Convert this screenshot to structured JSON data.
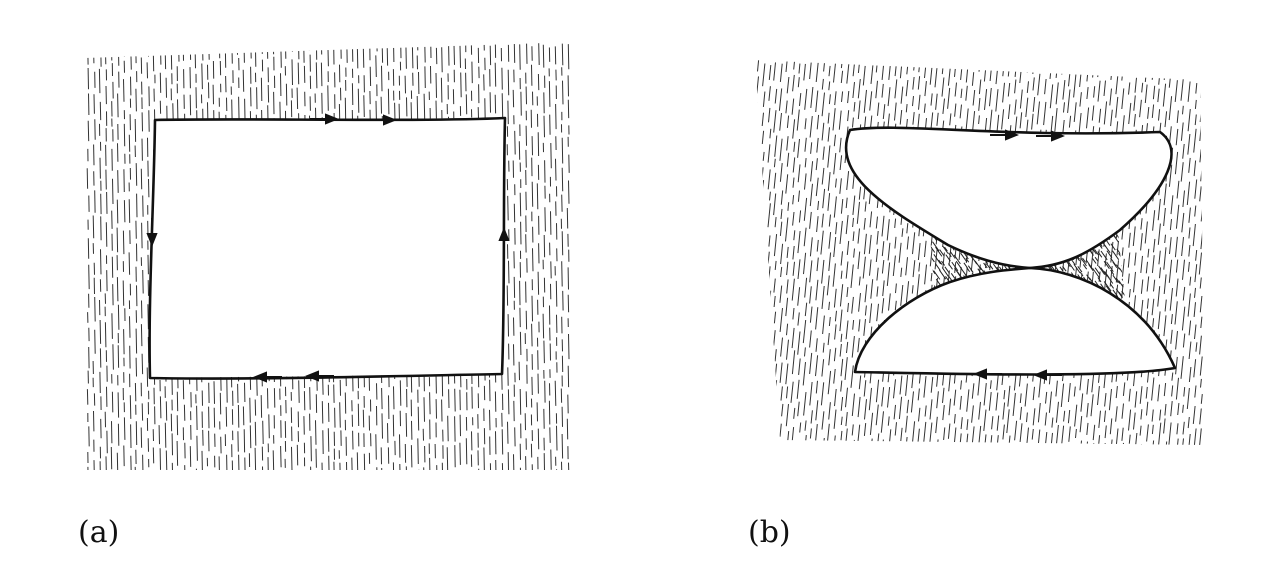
{
  "panels": [
    {
      "id": "a",
      "label": "(a)"
    },
    {
      "id": "b",
      "label": "(b)"
    }
  ],
  "colors": {
    "ink": "#111111",
    "hatch": "#333333",
    "background": "#ffffff"
  }
}
